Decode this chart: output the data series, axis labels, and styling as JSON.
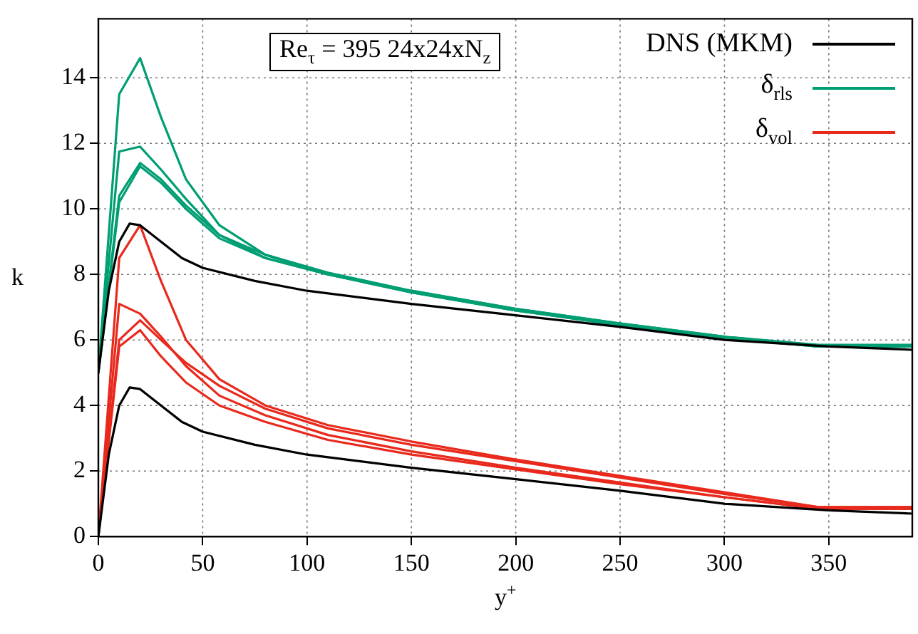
{
  "chart_data": {
    "type": "line",
    "xlabel": "y$^{+}$",
    "ylabel": "k",
    "annotations": [
      "Re$_{τ}$ = 395  24x24xN$_{z}$"
    ],
    "xlim": [
      0,
      390
    ],
    "ylim": [
      0,
      15.8
    ],
    "xticks": [
      0,
      50,
      100,
      150,
      200,
      250,
      300,
      350
    ],
    "yticks": [
      0,
      2,
      4,
      6,
      8,
      10,
      12,
      14
    ],
    "grid": true,
    "legend": "top right",
    "marker": "none",
    "line_style": "solid",
    "series": [
      {
        "name": "DNS (MKM)",
        "color": "#000000",
        "x": [
          0,
          5,
          10,
          15,
          20,
          30,
          40,
          50,
          75,
          100,
          150,
          200,
          250,
          300,
          350,
          390
        ],
        "values": [
          5,
          7.5,
          9.0,
          9.55,
          9.5,
          9.0,
          8.5,
          8.2,
          7.8,
          7.5,
          7.1,
          6.75,
          6.4,
          6.0,
          5.8,
          5.7
        ]
      },
      {
        "color": "#000000",
        "x": [
          0,
          5,
          10,
          15,
          20,
          30,
          40,
          50,
          75,
          100,
          150,
          200,
          250,
          300,
          350,
          390
        ],
        "values": [
          0,
          2.5,
          4.0,
          4.55,
          4.5,
          4.0,
          3.5,
          3.2,
          2.8,
          2.5,
          2.1,
          1.75,
          1.4,
          1.0,
          0.8,
          0.7
        ]
      },
      {
        "name": "δ$_{rls}$",
        "color": "#009e73",
        "x": [
          0,
          10,
          20,
          30,
          42,
          58,
          80,
          110,
          150,
          200,
          250,
          300,
          345,
          390
        ],
        "values": [
          5,
          13.5,
          14.6,
          12.8,
          10.9,
          9.5,
          8.6,
          8.0,
          7.5,
          6.95,
          6.5,
          6.1,
          5.8,
          5.8
        ]
      },
      {
        "color": "#009e73",
        "x": [
          0,
          10,
          20,
          30,
          42,
          58,
          80,
          110,
          150,
          200,
          250,
          300,
          345,
          390
        ],
        "values": [
          5,
          11.75,
          11.9,
          11.2,
          10.3,
          9.2,
          8.5,
          8.0,
          7.45,
          6.9,
          6.45,
          6.05,
          5.8,
          5.8
        ]
      },
      {
        "color": "#009e73",
        "x": [
          0,
          10,
          20,
          30,
          42,
          58,
          80,
          110,
          150,
          200,
          250,
          300,
          345,
          390
        ],
        "values": [
          5,
          10.2,
          11.3,
          10.8,
          10.0,
          9.1,
          8.5,
          8.0,
          7.45,
          6.9,
          6.45,
          6.05,
          5.8,
          5.8
        ]
      },
      {
        "color": "#009e73",
        "x": [
          0,
          10,
          20,
          30,
          42,
          58,
          80,
          110,
          150,
          200,
          250,
          300,
          345,
          390
        ],
        "values": [
          5,
          10.4,
          11.4,
          10.9,
          10.1,
          9.2,
          8.6,
          8.05,
          7.5,
          6.95,
          6.5,
          6.1,
          5.85,
          5.85
        ]
      },
      {
        "name": "δ$_{vol}$",
        "color": "#e8291c",
        "x": [
          0,
          10,
          20,
          30,
          42,
          58,
          80,
          110,
          150,
          200,
          250,
          300,
          345,
          390
        ],
        "values": [
          0,
          8.5,
          9.5,
          7.8,
          6.0,
          4.8,
          4.0,
          3.4,
          2.9,
          2.35,
          1.85,
          1.35,
          0.9,
          0.9
        ]
      },
      {
        "color": "#e8291c",
        "x": [
          0,
          10,
          20,
          30,
          42,
          58,
          80,
          110,
          150,
          200,
          250,
          300,
          345,
          390
        ],
        "values": [
          0,
          7.1,
          6.8,
          6.1,
          5.2,
          4.3,
          3.7,
          3.1,
          2.6,
          2.1,
          1.65,
          1.2,
          0.85,
          0.85
        ]
      },
      {
        "color": "#e8291c",
        "x": [
          0,
          10,
          20,
          30,
          42,
          58,
          80,
          110,
          150,
          200,
          250,
          300,
          345,
          390
        ],
        "values": [
          0,
          5.8,
          6.3,
          5.5,
          4.7,
          4.0,
          3.5,
          2.95,
          2.5,
          2.05,
          1.6,
          1.2,
          0.85,
          0.85
        ]
      },
      {
        "color": "#e8291c",
        "x": [
          0,
          10,
          20,
          30,
          42,
          58,
          80,
          110,
          150,
          200,
          250,
          300,
          345,
          390
        ],
        "values": [
          0,
          6.0,
          6.6,
          6.0,
          5.3,
          4.6,
          3.9,
          3.3,
          2.8,
          2.3,
          1.8,
          1.3,
          0.9,
          0.9
        ]
      }
    ]
  }
}
